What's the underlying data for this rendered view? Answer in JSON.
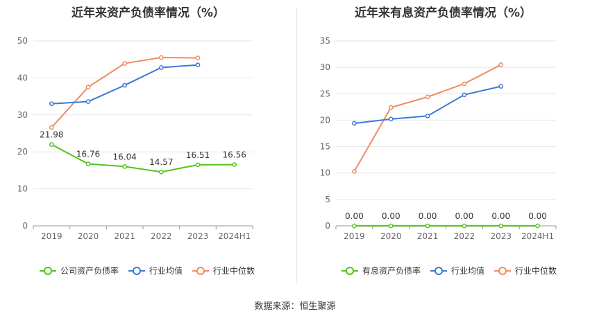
{
  "source_note": "数据来源：恒生聚源",
  "chart_data": [
    {
      "type": "line",
      "title": "近年来资产负债率情况（%）",
      "categories": [
        "2019",
        "2020",
        "2021",
        "2022",
        "2023",
        "2024H1"
      ],
      "ylim": [
        0,
        50
      ],
      "yticks": [
        0,
        10,
        20,
        30,
        40,
        50
      ],
      "grid": true,
      "legend_position": "bottom",
      "series": [
        {
          "name": "公司资产负债率",
          "color": "#52c41a",
          "values": [
            21.98,
            16.76,
            16.04,
            14.57,
            16.51,
            16.56
          ],
          "labels": [
            "21.98",
            "16.76",
            "16.04",
            "14.57",
            "16.51",
            "16.56"
          ]
        },
        {
          "name": "行业均值",
          "color": "#3a78d8",
          "values": [
            33.0,
            33.6,
            38.0,
            42.8,
            43.5,
            null
          ]
        },
        {
          "name": "行业中位数",
          "color": "#f08b62",
          "values": [
            26.6,
            37.5,
            43.9,
            45.5,
            45.4,
            null
          ]
        }
      ]
    },
    {
      "type": "line",
      "title": "近年来有息资产负债率情况（%）",
      "categories": [
        "2019",
        "2020",
        "2021",
        "2022",
        "2023",
        "2024H1"
      ],
      "ylim": [
        0,
        35
      ],
      "yticks": [
        0,
        5,
        10,
        15,
        20,
        25,
        30,
        35
      ],
      "grid": true,
      "legend_position": "bottom",
      "series": [
        {
          "name": "有息资产负债率",
          "color": "#52c41a",
          "values": [
            0,
            0,
            0,
            0,
            0,
            0
          ],
          "labels": [
            "0.00",
            "0.00",
            "0.00",
            "0.00",
            "0.00",
            "0.00"
          ]
        },
        {
          "name": "行业均值",
          "color": "#3a78d8",
          "values": [
            19.4,
            20.2,
            20.8,
            24.8,
            26.4,
            null
          ]
        },
        {
          "name": "行业中位数",
          "color": "#f08b62",
          "values": [
            10.3,
            22.4,
            24.4,
            26.9,
            30.5,
            null
          ]
        }
      ]
    }
  ]
}
